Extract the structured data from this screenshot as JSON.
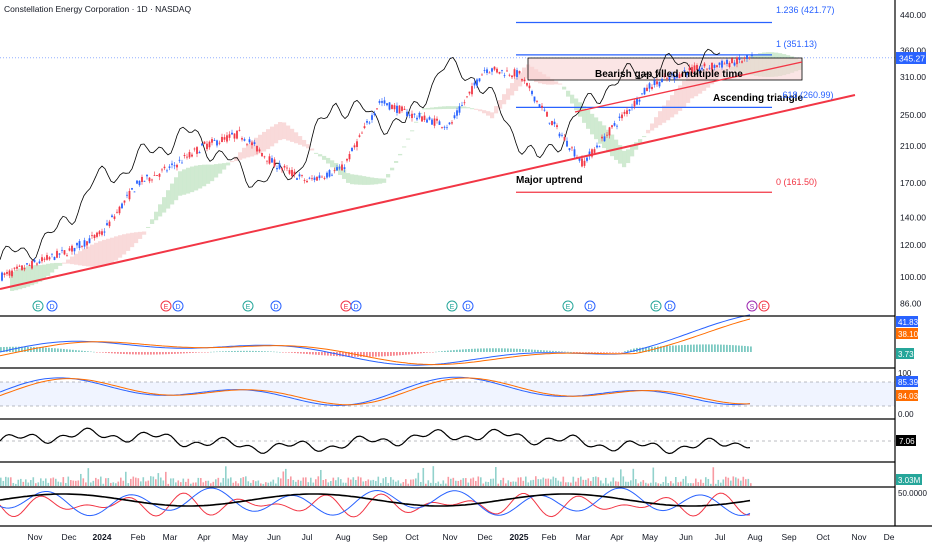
{
  "header": {
    "symbol_title": "Constellation Energy Corporation · 1D · NASDAQ"
  },
  "colors": {
    "up": "#2962ff",
    "down": "#f23645",
    "trendline": "#f23645",
    "fib_blue": "#2962ff",
    "fib_red": "#f23645",
    "kumo_bull": "#c8e6c9",
    "kumo_bear": "#f8d4d4",
    "macd_line": "#2962ff",
    "signal_line": "#ff6d00",
    "stoch_k": "#2962ff",
    "stoch_d": "#ff6d00",
    "black": "#000000",
    "price_tag_bg": "#2962ff"
  },
  "price_axis": {
    "ticks": [
      "440.00",
      "360.00",
      "310.00",
      "250.00",
      "210.00",
      "170.00",
      "140.00",
      "120.00",
      "100.00",
      "86.00"
    ],
    "current_price": "345.27",
    "scale": "log"
  },
  "time_axis": {
    "labels": [
      "Nov",
      "Dec",
      "2024",
      "Feb",
      "Mar",
      "Apr",
      "May",
      "Jun",
      "Jul",
      "Aug",
      "Sep",
      "Oct",
      "Nov",
      "Dec",
      "2025",
      "Feb",
      "Mar",
      "Apr",
      "May",
      "Jun",
      "Jul",
      "Aug",
      "Sep",
      "Oct",
      "Nov",
      "De"
    ]
  },
  "fib_levels": [
    {
      "label": "1.236 (421.77)"
    },
    {
      "label": "1 (351.13)"
    },
    {
      "label": ".618 (260.99)"
    },
    {
      "label": "0 (161.50)"
    }
  ],
  "annotations": {
    "bearish": "Bearish gap filled multiple time",
    "ascending": "Ascending triangle",
    "major": "Major uptrend"
  },
  "event_markers": [
    {
      "type": "E"
    },
    {
      "type": "D"
    },
    {
      "type": "E"
    },
    {
      "type": "D"
    },
    {
      "type": "E"
    },
    {
      "type": "D"
    },
    {
      "type": "E"
    },
    {
      "type": "D"
    },
    {
      "type": "E"
    },
    {
      "type": "D"
    },
    {
      "type": "E"
    },
    {
      "type": "D"
    },
    {
      "type": "E"
    },
    {
      "type": "D"
    },
    {
      "type": "S"
    },
    {
      "type": "E"
    }
  ],
  "indicators": {
    "macd": {
      "macd_value": "41.83",
      "signal_value": "38.10",
      "hist_value": "3.73"
    },
    "stoch": {
      "k_value": "85.39",
      "d_value": "84.03",
      "upper_label": "100",
      "lower_label": "0.00"
    },
    "osc": {
      "value": "7.06"
    },
    "volume": {
      "value": "3.03M"
    },
    "rsi": {
      "value": "50.0000"
    }
  },
  "chart_data": {
    "type": "line",
    "title": "Constellation Energy Corporation · 1D · NASDAQ",
    "y_scale": "log",
    "ylim": [
      80,
      460
    ],
    "x": [
      "Nov",
      "Dec",
      "2024",
      "Feb",
      "Mar",
      "Apr",
      "May",
      "Jun",
      "Jul",
      "Aug",
      "Sep",
      "Oct",
      "Nov",
      "Dec",
      "2025",
      "Feb",
      "Mar",
      "Apr",
      "May",
      "Jun",
      "Jul",
      "Aug"
    ],
    "series": [
      {
        "values": [
          100,
          108,
          116,
          128,
          170,
          185,
          210,
          225,
          190,
          172,
          185,
          270,
          250,
          235,
          325,
          315,
          245,
          190,
          240,
          295,
          320,
          345
        ]
      }
    ],
    "fibonacci": [
      421.77,
      351.13,
      260.99,
      161.5
    ]
  }
}
